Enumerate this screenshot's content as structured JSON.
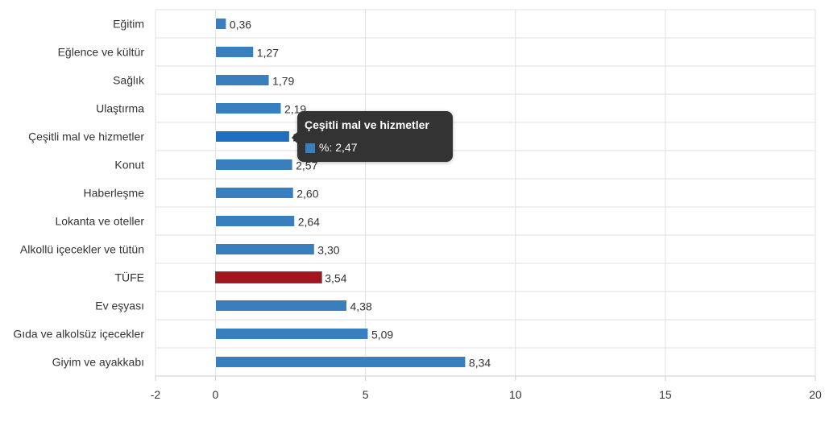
{
  "chart_data": {
    "type": "bar",
    "orientation": "horizontal",
    "categories": [
      "Eğitim",
      "Eğlence ve kültür",
      "Sağlık",
      "Ulaştırma",
      "Çeşitli mal ve hizmetler",
      "Konut",
      "Haberleşme",
      "Lokanta ve oteller",
      "Alkollü içecekler ve tütün",
      "TÜFE",
      "Ev eşyası",
      "Gıda ve alkolsüz içecekler",
      "Giyim ve ayakkabı"
    ],
    "series": [
      {
        "values": [
          0.36,
          1.27,
          1.79,
          2.19,
          2.47,
          2.57,
          2.6,
          2.64,
          3.3,
          3.54,
          4.38,
          5.09,
          8.34
        ],
        "labels": [
          "0,36",
          "1,27",
          "1,79",
          "2,19",
          "2,47",
          "2,57",
          "2,60",
          "2,64",
          "3,30",
          "3,54",
          "4,38",
          "5,09",
          "8,34"
        ]
      }
    ],
    "xlim": [
      -2,
      20
    ],
    "x_ticks": [
      -2,
      0,
      5,
      10,
      15,
      20
    ],
    "x_tick_labels": [
      "-2",
      "0",
      "5",
      "10",
      "15",
      "20"
    ],
    "grid": true,
    "colors": {
      "bar": "#3a7fbd",
      "highlight_total": "#a3161e",
      "hover": "#1e6fc0"
    },
    "highlighted_category": "TÜFE",
    "hovered_category": "Çeşitli mal ve hizmetler"
  },
  "tooltip": {
    "title": "Çeşitli mal ve hizmetler",
    "body": "%: 2,47",
    "swatch_color": "#3a7fbd"
  }
}
